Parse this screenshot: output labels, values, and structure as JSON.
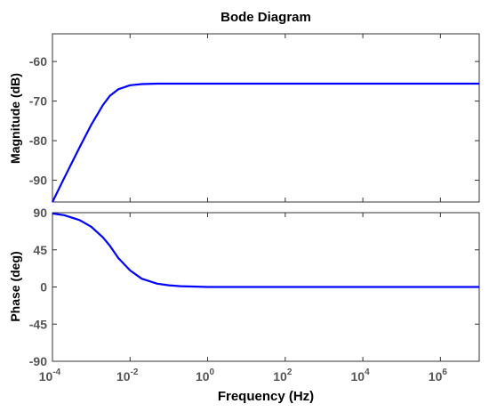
{
  "chart_data": {
    "title": "Bode Diagram",
    "xlabel": "Frequency  (Hz)",
    "x_scale": "log",
    "xlim": [
      0.0001,
      10000000
    ],
    "x_ticks": [
      {
        "base": "10",
        "exp": "-4"
      },
      {
        "base": "10",
        "exp": "-2"
      },
      {
        "base": "10",
        "exp": "0"
      },
      {
        "base": "10",
        "exp": "2"
      },
      {
        "base": "10",
        "exp": "4"
      },
      {
        "base": "10",
        "exp": "6"
      }
    ],
    "line_color": "#0000ff",
    "grid": false,
    "panels": [
      {
        "type": "line",
        "ylabel": "Magnitude (dB)",
        "ylim": [
          -95.5,
          -53
        ],
        "yticks": [
          "-60",
          "-70",
          "-80",
          "-90"
        ],
        "x": [
          0.0001,
          0.0002,
          0.0005,
          0.001,
          0.002,
          0.003,
          0.005,
          0.01,
          0.02,
          0.05,
          0.1,
          1,
          10,
          100,
          10000,
          10000000
        ],
        "y": [
          -95.5,
          -89.5,
          -81.7,
          -76.0,
          -71.0,
          -68.7,
          -67.0,
          -66.0,
          -65.7,
          -65.6,
          -65.6,
          -65.6,
          -65.6,
          -65.6,
          -65.6,
          -65.6
        ]
      },
      {
        "type": "line",
        "ylabel": "Phase (deg)",
        "ylim": [
          -90,
          90
        ],
        "yticks": [
          "90",
          "45",
          "0",
          "-45",
          "-90"
        ],
        "x": [
          0.0001,
          0.0002,
          0.0005,
          0.001,
          0.002,
          0.003,
          0.005,
          0.01,
          0.02,
          0.05,
          0.1,
          0.2,
          1,
          10,
          100,
          10000,
          10000000
        ],
        "y": [
          89,
          87,
          81,
          73,
          60,
          50,
          35,
          20,
          10,
          4,
          2,
          1,
          0,
          0,
          0,
          0,
          0
        ]
      }
    ]
  }
}
